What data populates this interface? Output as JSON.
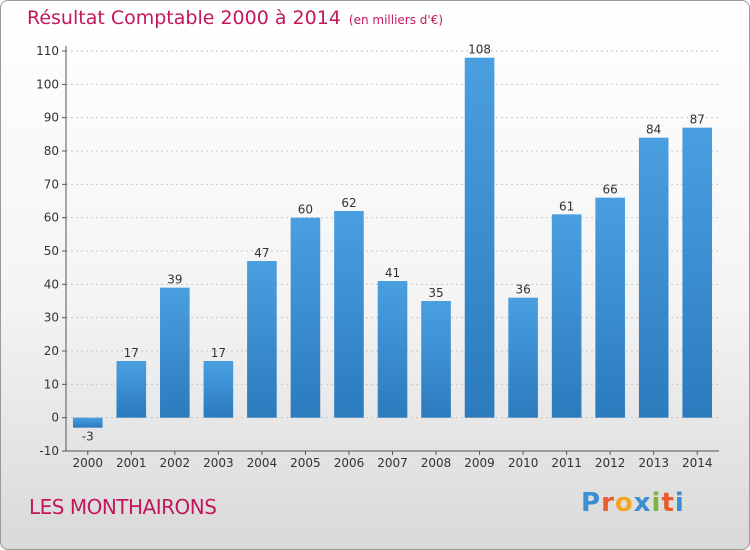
{
  "header": {
    "title": "Résultat Comptable 2000 à 2014",
    "unit": "(en milliers d'€)"
  },
  "footer": {
    "commune": "LES MONTHAIRONS",
    "logo_letters": [
      "P",
      "r",
      "o",
      "x",
      "i",
      "t",
      "i"
    ],
    "logo_colors": [
      "#3a8ed3",
      "#e85d2a",
      "#f5a623",
      "#3a8ed3",
      "#7cb342",
      "#e85d2a",
      "#3a8ed3"
    ]
  },
  "chart_data": {
    "type": "bar",
    "title": "Résultat Comptable 2000 à 2014",
    "subtitle": "(en milliers d'€)",
    "xlabel": "",
    "ylabel": "",
    "categories": [
      "2000",
      "2001",
      "2002",
      "2003",
      "2004",
      "2005",
      "2006",
      "2007",
      "2008",
      "2009",
      "2010",
      "2011",
      "2012",
      "2013",
      "2014"
    ],
    "values": [
      -3,
      17,
      39,
      17,
      47,
      60,
      62,
      41,
      35,
      108,
      36,
      61,
      66,
      84,
      87
    ],
    "labels": [
      "-3",
      "17",
      "39",
      "17",
      "47",
      "60",
      "62",
      "41",
      "35",
      "108",
      "36",
      "61",
      "66",
      "84",
      "87"
    ],
    "ylim": [
      -10,
      110
    ],
    "yticks": [
      -10,
      0,
      10,
      20,
      30,
      40,
      50,
      60,
      70,
      80,
      90,
      100,
      110
    ],
    "grid": true,
    "bar_color": "#4a9fe0",
    "bar_color_dark": "#2b7bbd"
  }
}
